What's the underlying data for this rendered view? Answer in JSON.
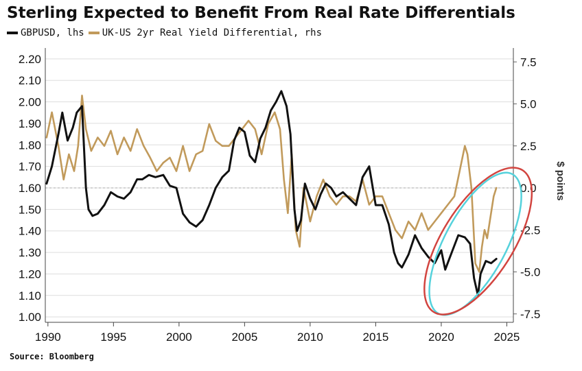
{
  "title": "Sterling Expected to Benefit From Real Rate Differentials",
  "legend": {
    "series1": "GBPUSD, lhs",
    "series2": "UK-US 2yr Real Yield Differential, rhs"
  },
  "source": "Source: Bloomberg",
  "colors": {
    "gbpusd": "#111111",
    "diff": "#c19a5b",
    "ellipse_red": "#d2443f",
    "ellipse_cyan": "#55d2dc",
    "grid": "#dddddd"
  },
  "chart_data": {
    "type": "line",
    "title": "Sterling Expected to Benefit From Real Rate Differentials",
    "xlabel": "",
    "ylabel": "",
    "ylabel_right": "$ points",
    "xlim": [
      1989.8,
      2025.5
    ],
    "ylim": [
      0.975,
      2.225
    ],
    "ylim_right": [
      -8.0,
      8.0
    ],
    "x_ticks": [
      "1990",
      "1995",
      "2000",
      "2005",
      "2010",
      "2015",
      "2020",
      "2025"
    ],
    "y_ticks_left": [
      "2.20",
      "2.10",
      "2.00",
      "1.90",
      "1.80",
      "1.70",
      "1.60",
      "1.50",
      "1.40",
      "1.30",
      "1.20",
      "1.10",
      "1.00"
    ],
    "y_ticks_right": [
      "7.5",
      "5.0",
      "2.5",
      "0.0",
      "-2.5",
      "-5.0",
      "-7.5"
    ],
    "zero_reference_line": 0.0,
    "series": [
      {
        "name": "GBPUSD, lhs",
        "axis": "left",
        "x": [
          1989.9,
          1990.3,
          1990.8,
          1991.1,
          1991.5,
          1991.9,
          1992.2,
          1992.6,
          1992.9,
          1993.1,
          1993.4,
          1993.8,
          1994.3,
          1994.8,
          1995.3,
          1995.8,
          1996.3,
          1996.8,
          1997.2,
          1997.7,
          1998.2,
          1998.8,
          1999.3,
          1999.8,
          2000.3,
          2000.8,
          2001.3,
          2001.8,
          2002.3,
          2002.8,
          2003.3,
          2003.8,
          2004.2,
          2004.6,
          2005.0,
          2005.4,
          2005.8,
          2006.2,
          2006.6,
          2007.0,
          2007.4,
          2007.8,
          2008.2,
          2008.5,
          2008.8,
          2009.0,
          2009.3,
          2009.6,
          2010.0,
          2010.4,
          2010.8,
          2011.2,
          2011.6,
          2012.0,
          2012.5,
          2013.0,
          2013.5,
          2014.0,
          2014.5,
          2015.0,
          2015.5,
          2016.0,
          2016.4,
          2016.7,
          2017.0,
          2017.5,
          2018.0,
          2018.5,
          2019.0,
          2019.5,
          2020.0,
          2020.3,
          2020.8,
          2021.3,
          2021.8,
          2022.2,
          2022.5,
          2022.8,
          2023.0,
          2023.4,
          2023.8,
          2024.2
        ],
        "y": [
          1.62,
          1.7,
          1.85,
          1.95,
          1.82,
          1.88,
          1.95,
          1.98,
          1.6,
          1.5,
          1.47,
          1.48,
          1.52,
          1.58,
          1.56,
          1.55,
          1.58,
          1.64,
          1.64,
          1.66,
          1.65,
          1.66,
          1.61,
          1.6,
          1.48,
          1.44,
          1.42,
          1.45,
          1.52,
          1.6,
          1.65,
          1.68,
          1.82,
          1.88,
          1.86,
          1.75,
          1.72,
          1.83,
          1.88,
          1.96,
          2.0,
          2.05,
          1.98,
          1.85,
          1.5,
          1.4,
          1.45,
          1.62,
          1.55,
          1.5,
          1.57,
          1.62,
          1.6,
          1.56,
          1.58,
          1.55,
          1.52,
          1.65,
          1.7,
          1.52,
          1.52,
          1.43,
          1.3,
          1.25,
          1.23,
          1.29,
          1.38,
          1.32,
          1.28,
          1.25,
          1.31,
          1.22,
          1.3,
          1.38,
          1.37,
          1.34,
          1.18,
          1.1,
          1.2,
          1.26,
          1.25,
          1.27
        ]
      },
      {
        "name": "UK-US 2yr Real Yield Differential, rhs",
        "axis": "right",
        "x": [
          1989.9,
          1990.3,
          1990.8,
          1991.2,
          1991.6,
          1992.0,
          1992.3,
          1992.6,
          1992.9,
          1993.3,
          1993.8,
          1994.3,
          1994.8,
          1995.3,
          1995.8,
          1996.3,
          1996.8,
          1997.3,
          1997.8,
          1998.3,
          1998.8,
          1999.3,
          1999.8,
          2000.3,
          2000.8,
          2001.3,
          2001.8,
          2002.3,
          2002.8,
          2003.3,
          2003.8,
          2004.3,
          2004.8,
          2005.3,
          2005.8,
          2006.3,
          2006.8,
          2007.3,
          2007.7,
          2008.0,
          2008.3,
          2008.6,
          2008.9,
          2009.2,
          2009.5,
          2010.0,
          2010.5,
          2011.0,
          2011.5,
          2012.0,
          2012.5,
          2013.0,
          2013.5,
          2014.0,
          2014.5,
          2015.0,
          2015.5,
          2016.0,
          2016.5,
          2017.0,
          2017.5,
          2018.0,
          2018.5,
          2019.0,
          2019.5,
          2020.0,
          2020.5,
          2021.0,
          2021.4,
          2021.8,
          2022.0,
          2022.3,
          2022.6,
          2022.9,
          2023.1,
          2023.3,
          2023.5,
          2023.7,
          2024.0,
          2024.2
        ],
        "y": [
          3.0,
          4.5,
          2.5,
          0.5,
          2.0,
          1.0,
          2.5,
          5.5,
          3.5,
          2.2,
          3.0,
          2.5,
          3.4,
          2.0,
          3.0,
          2.2,
          3.5,
          2.5,
          1.8,
          1.0,
          1.5,
          1.8,
          1.0,
          2.5,
          1.0,
          2.0,
          2.2,
          3.8,
          2.8,
          2.5,
          2.5,
          3.0,
          3.5,
          4.0,
          3.5,
          2.0,
          3.8,
          4.5,
          3.5,
          0.5,
          -1.5,
          2.0,
          -2.5,
          -3.5,
          0.0,
          -2.0,
          -0.5,
          0.5,
          -0.5,
          -1.0,
          -0.5,
          -0.5,
          -0.8,
          0.5,
          -1.0,
          -0.5,
          -0.5,
          -1.5,
          -2.5,
          -3.0,
          -2.0,
          -2.5,
          -1.5,
          -2.5,
          -2.0,
          -1.5,
          -1.0,
          -0.5,
          1.0,
          2.5,
          2.0,
          0.0,
          -4.5,
          -5.0,
          -3.5,
          -2.5,
          -3.0,
          -2.0,
          -0.5,
          0.0
        ]
      }
    ],
    "annotations": [
      "red ellipse highlighting 2021-2024 divergence",
      "cyan ellipse highlighting 2021-2024 divergence"
    ]
  }
}
